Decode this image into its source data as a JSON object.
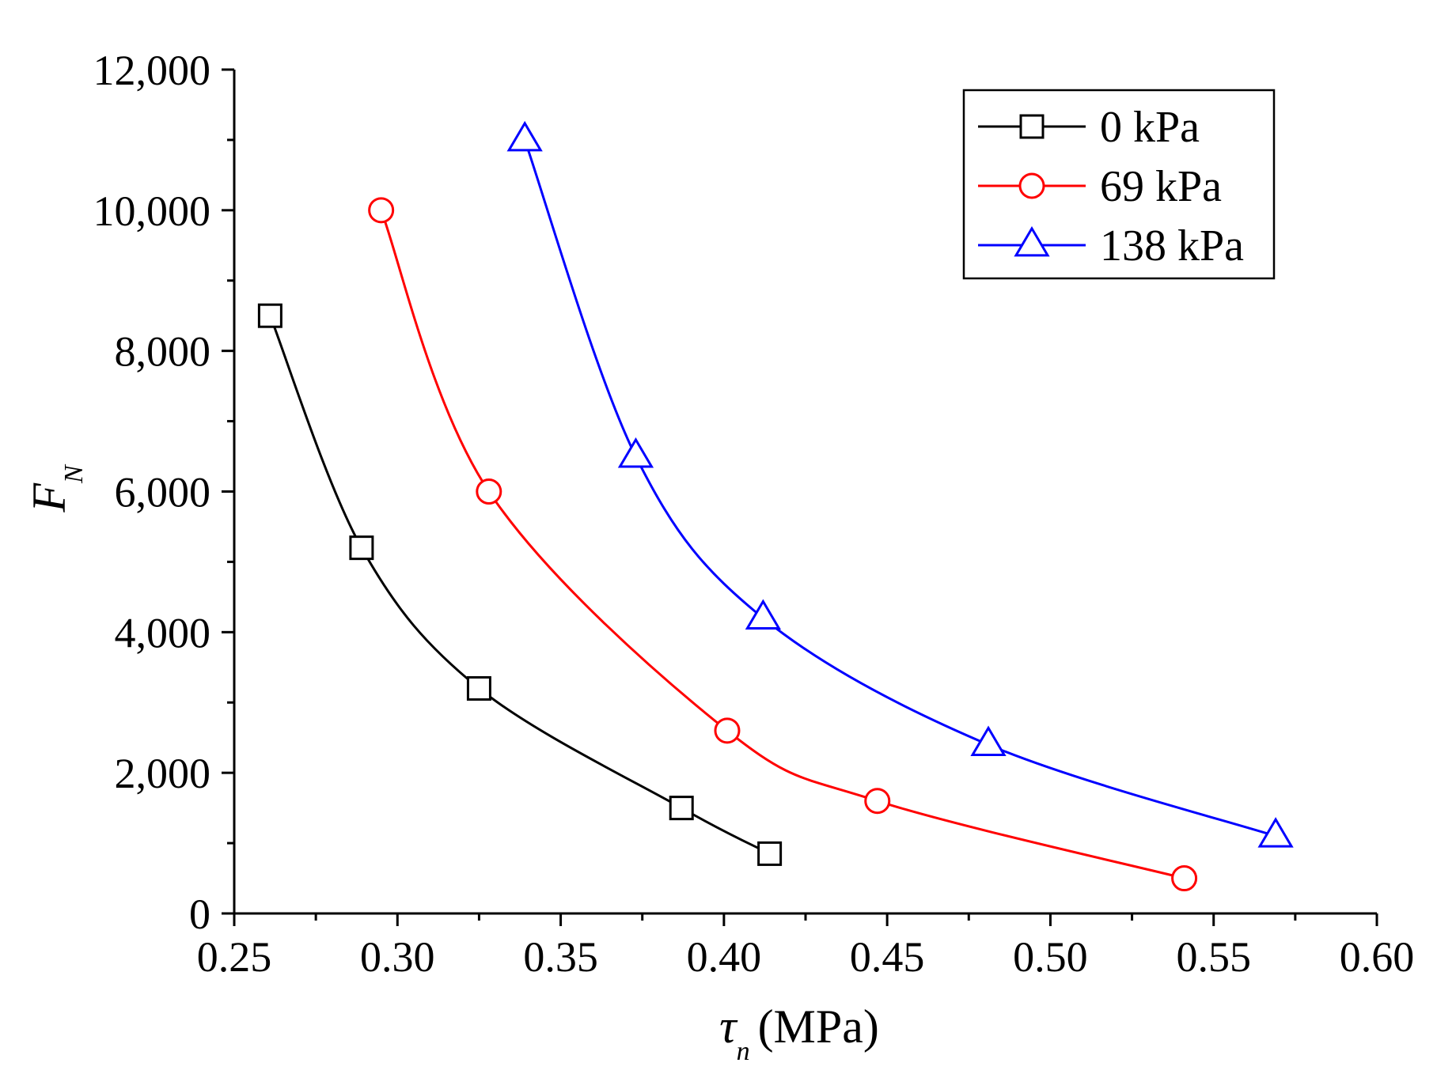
{
  "chart_data": {
    "type": "line",
    "xlabel": {
      "symbol": "τ",
      "sub": "n",
      "unit": "(MPa)"
    },
    "ylabel": {
      "symbol": "F",
      "sub": "N"
    },
    "xlim": [
      0.25,
      0.6
    ],
    "ylim": [
      0,
      12000
    ],
    "xticks": [
      0.25,
      0.3,
      0.35,
      0.4,
      0.45,
      0.5,
      0.55,
      0.6
    ],
    "xtick_labels": [
      "0.25",
      "0.30",
      "0.35",
      "0.40",
      "0.45",
      "0.50",
      "0.55",
      "0.60"
    ],
    "yticks": [
      0,
      2000,
      4000,
      6000,
      8000,
      10000,
      12000
    ],
    "ytick_labels": [
      "0",
      "2,000",
      "4,000",
      "6,000",
      "8,000",
      "10,000",
      "12,000"
    ],
    "grid": false,
    "legend_position": "top-right",
    "series": [
      {
        "name": "0 kPa",
        "color": "#000000",
        "marker": "square",
        "x": [
          0.261,
          0.289,
          0.325,
          0.387,
          0.414
        ],
        "y": [
          8500,
          5200,
          3200,
          1500,
          850
        ]
      },
      {
        "name": "69 kPa",
        "color": "#ff0000",
        "marker": "circle",
        "x": [
          0.295,
          0.328,
          0.401,
          0.447,
          0.541
        ],
        "y": [
          10000,
          6000,
          2600,
          1600,
          500
        ]
      },
      {
        "name": "138 kPa",
        "color": "#0000ff",
        "marker": "triangle",
        "x": [
          0.339,
          0.373,
          0.412,
          0.481,
          0.569
        ],
        "y": [
          11000,
          6500,
          4200,
          2400,
          1100
        ]
      }
    ]
  }
}
